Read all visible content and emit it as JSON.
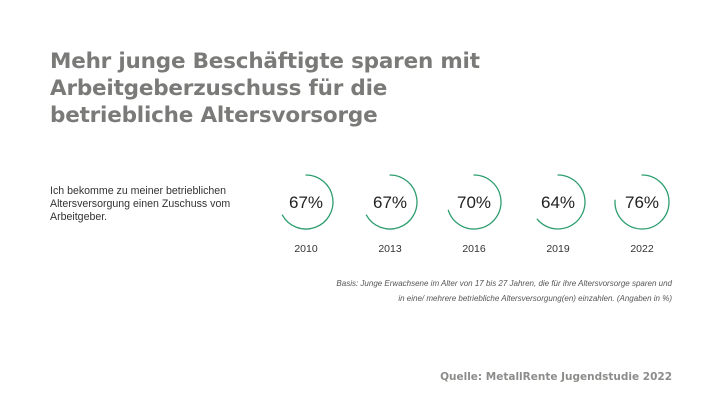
{
  "title_lines": [
    "Mehr junge Beschäftigte sparen mit",
    "Arbeitgeberzuschuss für die",
    "betriebliche Altersvorsorge"
  ],
  "statement_lines": [
    "Ich bekomme zu meiner betrieblichen",
    "Altersversorgung einen Zuschuss vom",
    "Arbeitgeber."
  ],
  "colors": {
    "ring": "#2e9e6e",
    "title": "#7a7a78",
    "value_text": "#222222"
  },
  "chart_data": {
    "type": "progress-rings",
    "unit": "%",
    "years": [
      "2010",
      "2013",
      "2016",
      "2019",
      "2022"
    ],
    "values": [
      67,
      67,
      70,
      64,
      76
    ],
    "value_labels": [
      "67%",
      "67%",
      "70%",
      "64%",
      "76%"
    ]
  },
  "basis_lines": [
    "Basis: Junge Erwachsene im Alter von 17 bis 27 Jahren, die für ihre Altersvorsorge sparen und",
    "in eine/ mehrere betriebliche Altersversorgung(en) einzahlen. (Angaben in %)"
  ],
  "source": "Quelle: MetallRente Jugendstudie 2022"
}
